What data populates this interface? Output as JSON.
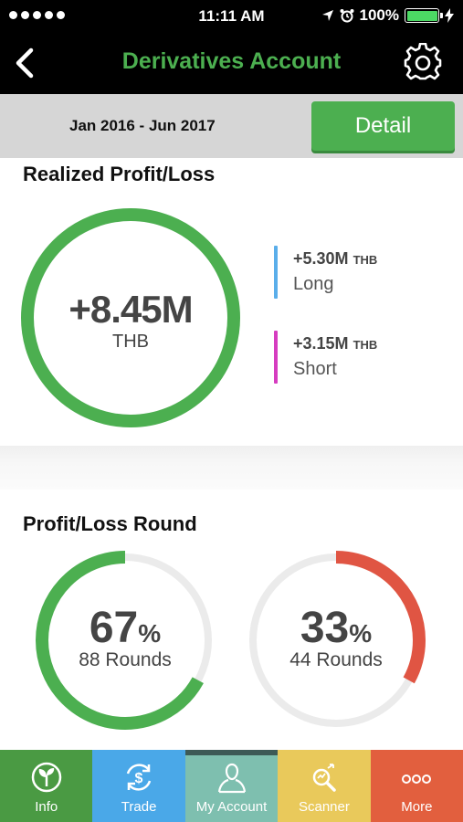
{
  "status_bar": {
    "time": "11:11 AM",
    "battery": "100%",
    "battery_level": 1.0,
    "icons": [
      "signal-dots",
      "location-icon",
      "alarm-icon",
      "battery-icon",
      "charging-icon"
    ]
  },
  "nav": {
    "title": "Derivatives Account",
    "title_color": "#4caf50",
    "icons": [
      "back-icon",
      "gear-icon"
    ]
  },
  "period": {
    "range": "Jan 2016 - Jun 2017",
    "detail_label": "Detail"
  },
  "realized": {
    "title": "Realized Profit/Loss",
    "total_value": "+8.45M",
    "total_unit": "THB",
    "ring_fraction": 1.0,
    "ring_color": "#4caf50",
    "long": {
      "value": "+5.30M",
      "unit": "THB",
      "label": "Long",
      "color": "#5aaeea"
    },
    "short": {
      "value": "+3.15M",
      "unit": "THB",
      "label": "Short",
      "color": "#d63cc0"
    }
  },
  "rounds": {
    "title": "Profit/Loss Round",
    "win": {
      "percent": "67",
      "percent_sign": "%",
      "rounds": "88 Rounds",
      "fraction": 0.67,
      "color": "#4caf50"
    },
    "loss": {
      "percent": "33",
      "percent_sign": "%",
      "rounds": "44 Rounds",
      "fraction": 0.33,
      "color": "#e05543"
    }
  },
  "tabs": [
    {
      "label": "Info",
      "icon": "plant-icon",
      "color": "#4a9a43"
    },
    {
      "label": "Trade",
      "icon": "dollar-exchange-icon",
      "color": "#4aa8e8"
    },
    {
      "label": "My Account",
      "icon": "user-icon",
      "color": "#7ebfaf",
      "selected": true
    },
    {
      "label": "Scanner",
      "icon": "scanner-icon",
      "color": "#e9c95b"
    },
    {
      "label": "More",
      "icon": "more-dots-icon",
      "color": "#e25f3e"
    }
  ]
}
